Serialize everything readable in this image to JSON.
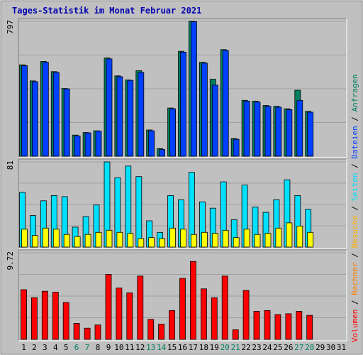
{
  "chart_data": {
    "type": "bar",
    "title": "Tages-Statistik im Monat Februar 2021",
    "categories": [
      "1",
      "2",
      "3",
      "4",
      "5",
      "6",
      "7",
      "8",
      "9",
      "10",
      "11",
      "12",
      "13",
      "14",
      "15",
      "16",
      "17",
      "18",
      "19",
      "20",
      "21",
      "22",
      "23",
      "24",
      "25",
      "26",
      "27",
      "28",
      "29",
      "30",
      "31"
    ],
    "weekend_days": [
      "6",
      "7",
      "13",
      "14",
      "20",
      "21",
      "27",
      "28"
    ],
    "grid": true,
    "legend_placement": "right (vertical)",
    "legend": [
      {
        "name": "Volumen",
        "color": "#ff0000"
      },
      {
        "name": "Rechner",
        "color": "#ff7f00"
      },
      {
        "name": "Besuche",
        "color": "#ffff00"
      },
      {
        "name": "Seiten",
        "color": "#00e0ff"
      },
      {
        "name": "Dateien",
        "color": "#0040ff"
      },
      {
        "name": "Anfragen",
        "color": "#008060"
      }
    ],
    "legend_separator": "/",
    "panels": [
      {
        "ymax_label": "797",
        "ylim": [
          0,
          797
        ],
        "series": [
          {
            "name": "Anfragen",
            "values": [
              540,
              445,
              560,
              500,
              400,
              125,
              140,
              150,
              580,
              475,
              450,
              505,
              155,
              45,
              285,
              620,
              797,
              555,
              455,
              630,
              105,
              330,
              325,
              300,
              295,
              280,
              390,
              265,
              0,
              0,
              0
            ]
          },
          {
            "name": "Dateien",
            "values": [
              535,
              440,
              555,
              495,
              398,
              120,
              138,
              148,
              575,
              470,
              448,
              495,
              150,
              40,
              280,
              615,
              795,
              550,
              420,
              625,
              100,
              325,
              320,
              295,
              290,
              275,
              330,
              260,
              0,
              0,
              0
            ]
          }
        ]
      },
      {
        "ymax_label": "81",
        "ylim": [
          0,
          81
        ],
        "series": [
          {
            "name": "Seiten",
            "values": [
              52,
              30,
              44,
              49,
              48,
              19,
              29,
              40,
              81,
              66,
              77,
              67,
              25,
              14,
              49,
              45,
              71,
              43,
              37,
              62,
              26,
              59,
              38,
              33,
              45,
              64,
              49,
              36,
              0,
              0,
              0
            ]
          },
          {
            "name": "Besuche",
            "values": [
              17,
              11,
              18,
              17,
              12,
              10,
              12,
              14,
              16,
              14,
              13,
              8,
              9,
              8,
              18,
              17,
              12,
              14,
              13,
              16,
              9,
              17,
              12,
              13,
              18,
              23,
              20,
              14,
              0,
              0,
              0
            ]
          }
        ]
      },
      {
        "ymax_label": "9.72",
        "ylim": [
          0,
          10.8
        ],
        "series": [
          {
            "name": "Volumen",
            "values": [
              6.2,
              5.2,
              6.0,
              5.9,
              4.6,
              2.0,
              1.4,
              1.8,
              8.1,
              6.4,
              5.8,
              7.9,
              2.5,
              1.9,
              3.6,
              7.6,
              9.72,
              6.3,
              5.2,
              7.9,
              1.2,
              6.1,
              3.5,
              3.6,
              3.1,
              3.2,
              3.5,
              3.0,
              0,
              0,
              0
            ]
          }
        ]
      }
    ]
  }
}
